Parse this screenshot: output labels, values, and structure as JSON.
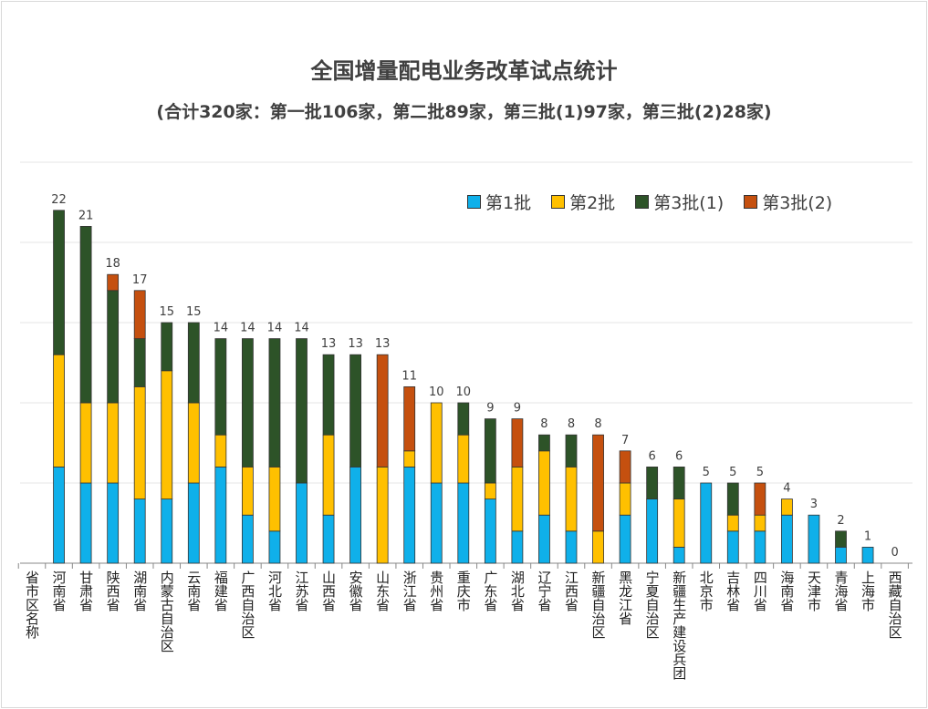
{
  "chart_data": {
    "type": "bar",
    "stacked": true,
    "title": "全国增量配电业务改革试点统计",
    "subtitle": "(合计320家：第一批106家，第二批89家，第三批(1)97家，第三批(2)28家)",
    "xlabel": "省市区名称",
    "ylim": [
      0,
      25
    ],
    "grid": true,
    "legend_position": "top-right",
    "categories": [
      "河南省",
      "甘肃省",
      "陕西省",
      "湖南省",
      "内蒙古自治区",
      "云南省",
      "福建省",
      "广西自治区",
      "河北省",
      "江苏省",
      "山西省",
      "安徽省",
      "山东省",
      "浙江省",
      "贵州省",
      "重庆市",
      "广东省",
      "湖北省",
      "辽宁省",
      "江西省",
      "新疆自治区",
      "黑龙江省",
      "宁夏自治区",
      "新疆生产建设兵团",
      "北京市",
      "吉林省",
      "四川省",
      "海南省",
      "天津市",
      "青海省",
      "上海市",
      "西藏自治区"
    ],
    "totals": [
      22,
      21,
      18,
      17,
      15,
      15,
      14,
      14,
      14,
      14,
      13,
      13,
      13,
      11,
      10,
      10,
      9,
      9,
      8,
      8,
      8,
      7,
      6,
      6,
      5,
      5,
      5,
      4,
      3,
      2,
      1,
      0
    ],
    "series": [
      {
        "name": "第1批",
        "color": "#0FB0EA",
        "values": [
          6,
          5,
          5,
          4,
          4,
          5,
          6,
          3,
          2,
          5,
          3,
          6,
          0,
          6,
          5,
          5,
          4,
          2,
          3,
          2,
          0,
          3,
          4,
          1,
          5,
          2,
          2,
          3,
          3,
          1,
          1,
          0
        ]
      },
      {
        "name": "第2批",
        "color": "#FFC000",
        "values": [
          7,
          5,
          5,
          7,
          8,
          5,
          2,
          3,
          4,
          0,
          5,
          0,
          6,
          1,
          5,
          3,
          1,
          4,
          4,
          4,
          2,
          2,
          0,
          3,
          0,
          1,
          1,
          1,
          0,
          0,
          0,
          0
        ]
      },
      {
        "name": "第3批(1)",
        "color": "#2D5328",
        "values": [
          9,
          11,
          7,
          3,
          3,
          5,
          6,
          8,
          8,
          9,
          5,
          7,
          0,
          0,
          0,
          2,
          4,
          0,
          1,
          2,
          0,
          0,
          2,
          2,
          0,
          2,
          0,
          0,
          0,
          1,
          0,
          0
        ]
      },
      {
        "name": "第3批(2)",
        "color": "#C5500F",
        "values": [
          0,
          0,
          1,
          3,
          0,
          0,
          0,
          0,
          0,
          0,
          0,
          0,
          7,
          4,
          0,
          0,
          0,
          3,
          0,
          0,
          6,
          2,
          0,
          0,
          0,
          0,
          2,
          0,
          0,
          0,
          0,
          0
        ]
      }
    ]
  }
}
